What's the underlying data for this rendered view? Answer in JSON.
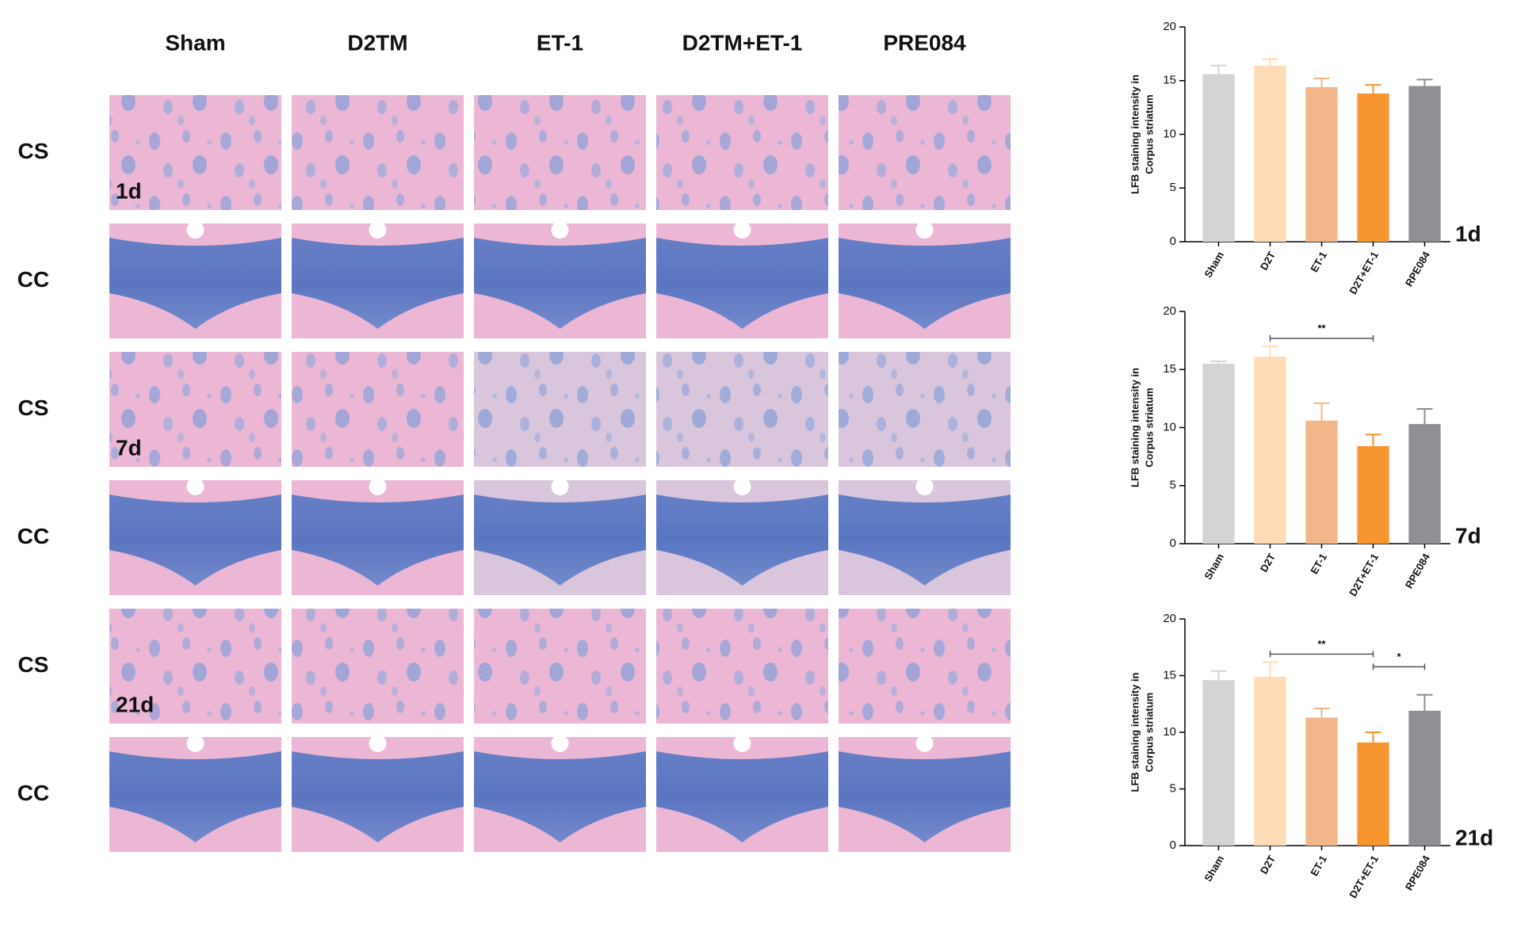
{
  "panel": {
    "columns": [
      "Sham",
      "D2TM",
      "ET-1",
      "D2TM+ET-1",
      "PRE084"
    ],
    "rows": [
      "CS",
      "CC",
      "CS",
      "CC",
      "CS",
      "CC"
    ],
    "timepoints": [
      "1d",
      "7d",
      "21d"
    ]
  },
  "chart_data": [
    {
      "type": "bar",
      "label": "1d",
      "ylabel": [
        "LFB staining intensity in",
        "Corpus striatum"
      ],
      "categories": [
        "Sham",
        "D2T",
        "ET-1",
        "D2T+ET-1",
        "RPE084"
      ],
      "values": [
        15.6,
        16.4,
        14.4,
        13.8,
        14.5
      ],
      "errors": [
        0.8,
        0.6,
        0.8,
        0.8,
        0.6
      ],
      "colors": [
        "#d4d4d4",
        "#fddcb6",
        "#f1b78a",
        "#f7962f",
        "#8f8f94"
      ],
      "ylim": [
        0,
        20
      ],
      "yticks": [
        0,
        5,
        10,
        15,
        20
      ],
      "annotations": []
    },
    {
      "type": "bar",
      "label": "7d",
      "ylabel": [
        "LFB staining intensity in",
        "Corpus striatum"
      ],
      "categories": [
        "Sham",
        "D2T",
        "ET-1",
        "D2T+ET-1",
        "RPE084"
      ],
      "values": [
        15.5,
        16.1,
        10.6,
        8.4,
        10.3
      ],
      "errors": [
        0.2,
        0.9,
        1.5,
        1.0,
        1.3
      ],
      "colors": [
        "#d4d4d4",
        "#fddcb6",
        "#f1b78a",
        "#f7962f",
        "#8f8f94"
      ],
      "ylim": [
        0,
        20
      ],
      "yticks": [
        0,
        5,
        10,
        15,
        20
      ],
      "annotations": [
        {
          "label": "**",
          "between": [
            "D2T",
            "D2T+ET-1"
          ]
        }
      ]
    },
    {
      "type": "bar",
      "label": "21d",
      "ylabel": [
        "LFB staining intensity in",
        "Corpus striatum"
      ],
      "categories": [
        "Sham",
        "D2T",
        "ET-1",
        "D2T+ET-1",
        "RPE084"
      ],
      "values": [
        14.6,
        14.9,
        11.3,
        9.1,
        11.9
      ],
      "errors": [
        0.8,
        1.3,
        0.8,
        0.9,
        1.4
      ],
      "colors": [
        "#d4d4d4",
        "#fddcb6",
        "#f1b78a",
        "#f7962f",
        "#8f8f94"
      ],
      "ylim": [
        0,
        20
      ],
      "yticks": [
        0,
        5,
        10,
        15,
        20
      ],
      "annotations": [
        {
          "label": "**",
          "between": [
            "D2T",
            "D2T+ET-1"
          ]
        },
        {
          "label": "*",
          "between": [
            "D2T+ET-1",
            "RPE084"
          ]
        }
      ]
    }
  ]
}
